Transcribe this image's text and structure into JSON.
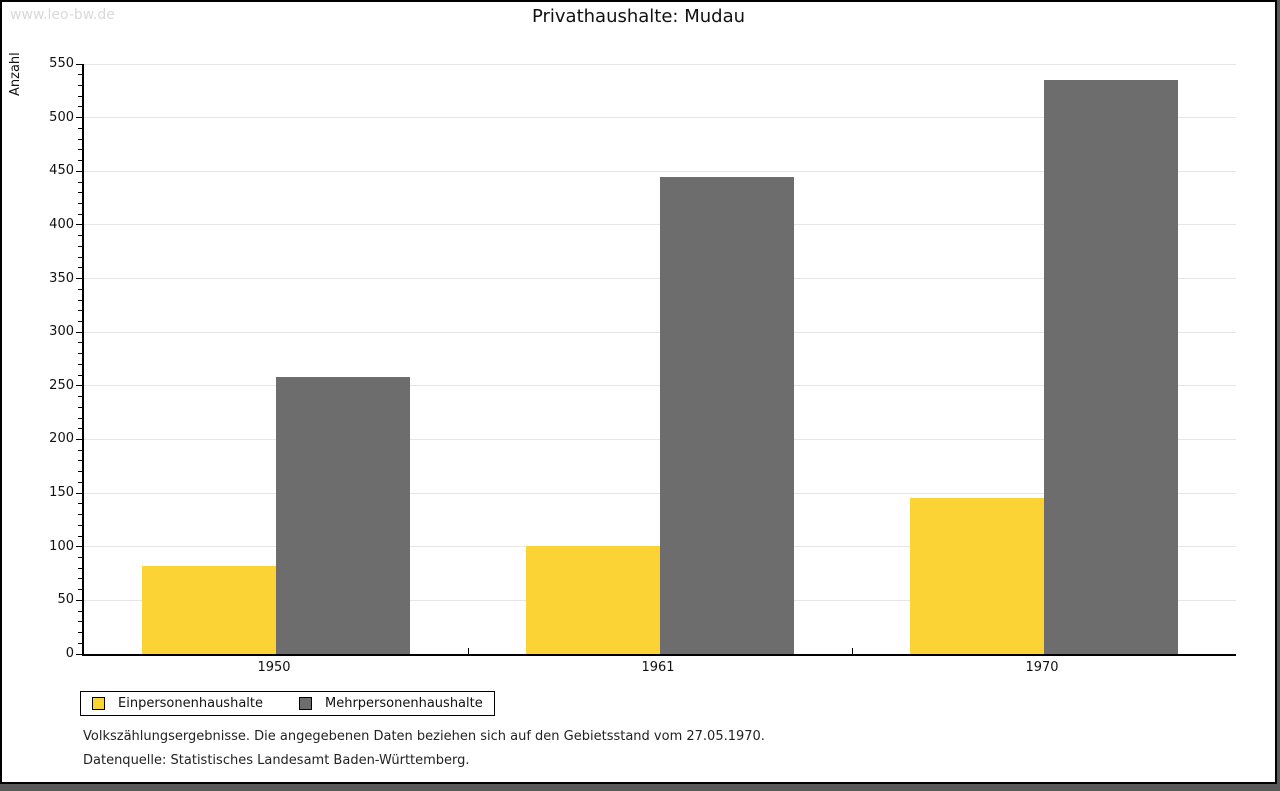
{
  "watermark": "www.leo-bw.de",
  "title": "Privathaushalte: Mudau",
  "chart_data": {
    "type": "bar",
    "title": "Privathaushalte: Mudau",
    "categories": [
      "1950",
      "1961",
      "1970"
    ],
    "series": [
      {
        "name": "Einpersonenhaushalte",
        "color": "#FCD335",
        "values": [
          82,
          101,
          145
        ]
      },
      {
        "name": "Mehrpersonenhaushalte",
        "color": "#6D6D6D",
        "values": [
          258,
          445,
          535
        ]
      }
    ],
    "xlabel": "",
    "ylabel": "Anzahl",
    "ylim": [
      0,
      550
    ],
    "ytick_step": 50,
    "minor_tick_step": 10,
    "grid": true,
    "legend_position": "bottom-left"
  },
  "footnotes": [
    "Volkszählungsergebnisse. Die angegebenen Daten beziehen sich auf den Gebietsstand vom 27.05.1970.",
    "Datenquelle: Statistisches Landesamt Baden-Württemberg."
  ],
  "colors": {
    "background": "#FFFFFF",
    "page_border": "#000000",
    "outer_shadow": "#595959",
    "gridline": "#E6E6E6",
    "watermark": "#D9D9D9",
    "series_1": "#FCD335",
    "series_2": "#6D6D6D"
  }
}
